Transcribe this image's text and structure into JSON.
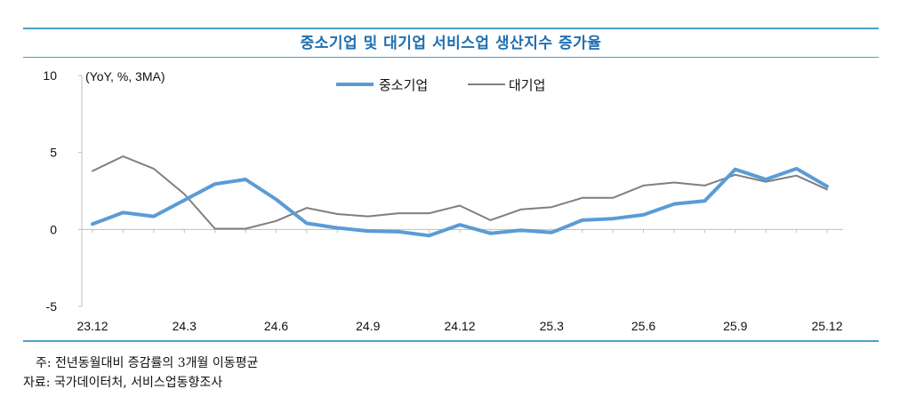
{
  "title": "중소기업 및 대기업 서비스업 생산지수 증가율",
  "note": "주: 전년동월대비 증감률의 3개월 이동평균",
  "source": "자료: 국가데이터처, 서비스업동향조사",
  "chart_data": {
    "type": "line",
    "unit_label": "(YoY, %, 3MA)",
    "categories": [
      "23.12",
      "24.1",
      "24.2",
      "24.3",
      "24.4",
      "24.5",
      "24.6",
      "24.7",
      "24.8",
      "24.9",
      "24.10",
      "24.11",
      "24.12",
      "25.1",
      "25.2",
      "25.3",
      "25.4",
      "25.5",
      "25.6",
      "25.7",
      "25.8",
      "25.9",
      "25.10",
      "25.11",
      "25.12"
    ],
    "tick_labels": [
      "23.12",
      "24.3",
      "24.6",
      "24.9",
      "24.12",
      "25.3",
      "25.6",
      "25.9",
      "25.12"
    ],
    "y_ticks": [
      "10",
      "5",
      "0",
      "-5"
    ],
    "ylim": [
      -5,
      10
    ],
    "series": [
      {
        "name": "중소기업",
        "color": "#5b9bd5",
        "values": [
          0.35,
          1.1,
          0.85,
          1.9,
          2.95,
          3.25,
          1.95,
          0.4,
          0.1,
          -0.1,
          -0.15,
          -0.4,
          0.3,
          -0.25,
          -0.05,
          -0.2,
          0.6,
          0.7,
          0.95,
          1.65,
          1.85,
          3.9,
          3.25,
          3.95,
          2.8
        ]
      },
      {
        "name": "대기업",
        "color": "#7f7f7f",
        "values": [
          3.8,
          4.75,
          3.95,
          2.3,
          0.05,
          0.05,
          0.55,
          1.4,
          1.0,
          0.85,
          1.05,
          1.05,
          1.55,
          0.6,
          1.3,
          1.45,
          2.05,
          2.05,
          2.85,
          3.05,
          2.85,
          3.55,
          3.1,
          3.5,
          2.6
        ]
      }
    ]
  }
}
